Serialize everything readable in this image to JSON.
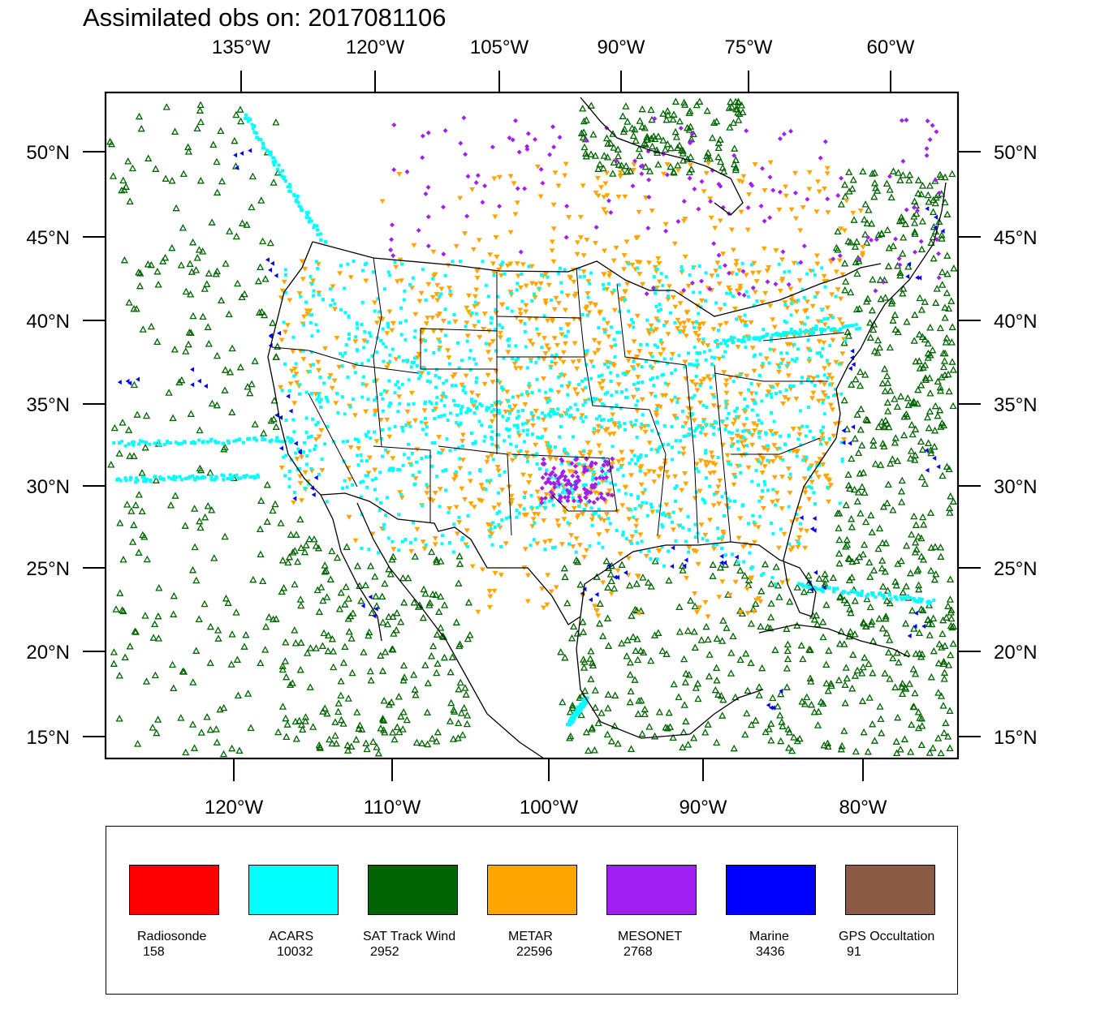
{
  "title": "Assimilated obs on: 2017081106",
  "axes": {
    "top_lon_labels": [
      "135°W",
      "120°W",
      "105°W",
      "90°W",
      "75°W",
      "60°W"
    ],
    "bottom_lon_labels": [
      "120°W",
      "110°W",
      "100°W",
      "90°W",
      "80°W"
    ],
    "lat_labels": [
      "50°N",
      "45°N",
      "40°N",
      "35°N",
      "30°N",
      "25°N",
      "20°N",
      "15°N"
    ]
  },
  "legend": [
    {
      "name": "Radiosonde",
      "count": "158",
      "color": "#ff0000"
    },
    {
      "name": "ACARS",
      "count": "10032",
      "color": "#00ffff"
    },
    {
      "name": "SAT Track Wind",
      "count": "2952",
      "color": "#006400"
    },
    {
      "name": "METAR",
      "count": "22596",
      "color": "#ffa500"
    },
    {
      "name": "MESONET",
      "count": "2768",
      "color": "#a020f0"
    },
    {
      "name": "Marine",
      "count": "3436",
      "color": "#0000ff"
    },
    {
      "name": "GPS Occultation",
      "count": "91",
      "color": "#8b5a44"
    }
  ],
  "colors": {
    "satwind": "#006400",
    "acars": "#00ffff",
    "metar": "#ffa500",
    "mesonet": "#a020f0",
    "marine": "#0000ff",
    "coast": "#000000"
  }
}
